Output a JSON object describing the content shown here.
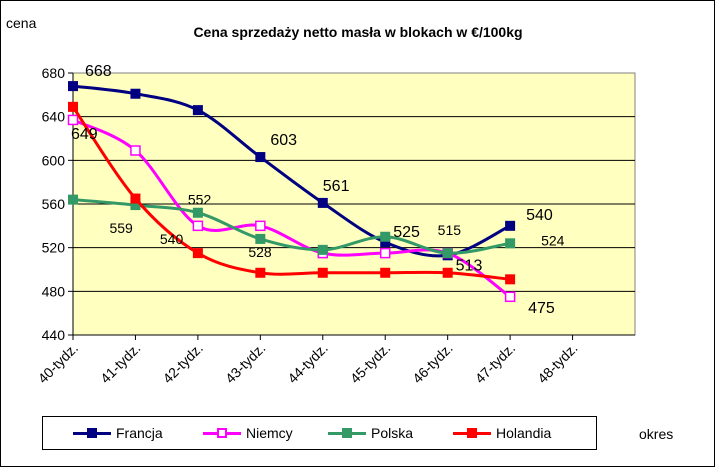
{
  "chart_data": {
    "type": "line",
    "title": "Cena sprzedaży netto masła  w blokach  w €/100kg",
    "ylabel": "cena",
    "xlabel": "okres",
    "categories": [
      "40-tydz.",
      "41-tydz.",
      "42-tydz.",
      "43-tydz.",
      "44-tydz.",
      "45-tydz.",
      "46-tydz.",
      "47-tydz.",
      "48-tydz."
    ],
    "ylim": [
      440,
      680
    ],
    "yticks": [
      440,
      480,
      520,
      560,
      600,
      640,
      680
    ],
    "plot_background": "#FFFFC0",
    "grid": "horizontal",
    "legend_position": "bottom",
    "series": [
      {
        "name": "Francja",
        "color": "#000080",
        "marker": "filled-square",
        "values": [
          668,
          661,
          646,
          603,
          561,
          525,
          513,
          540,
          null
        ],
        "labels": [
          "668",
          "",
          "",
          "603",
          "561",
          "525",
          "513",
          "540",
          ""
        ]
      },
      {
        "name": "Niemcy",
        "color": "#FF00FF",
        "marker": "open-square",
        "values": [
          637,
          609,
          540,
          540,
          515,
          515,
          515,
          475,
          null
        ],
        "labels": [
          "",
          "",
          "540",
          "",
          "",
          "",
          "515",
          "475",
          ""
        ]
      },
      {
        "name": "Polska",
        "color": "#339966",
        "marker": "filled-square",
        "values": [
          564,
          559,
          552,
          528,
          518,
          530,
          515,
          524,
          null
        ],
        "labels": [
          "",
          "559",
          "552",
          "528",
          "",
          "",
          "",
          "524",
          ""
        ]
      },
      {
        "name": "Holandia",
        "color": "#FF0000",
        "marker": "filled-square",
        "values": [
          649,
          565,
          515,
          497,
          497,
          497,
          497,
          491,
          null
        ],
        "labels": [
          "649",
          "",
          "",
          "",
          "",
          "",
          "",
          "",
          ""
        ]
      }
    ]
  }
}
